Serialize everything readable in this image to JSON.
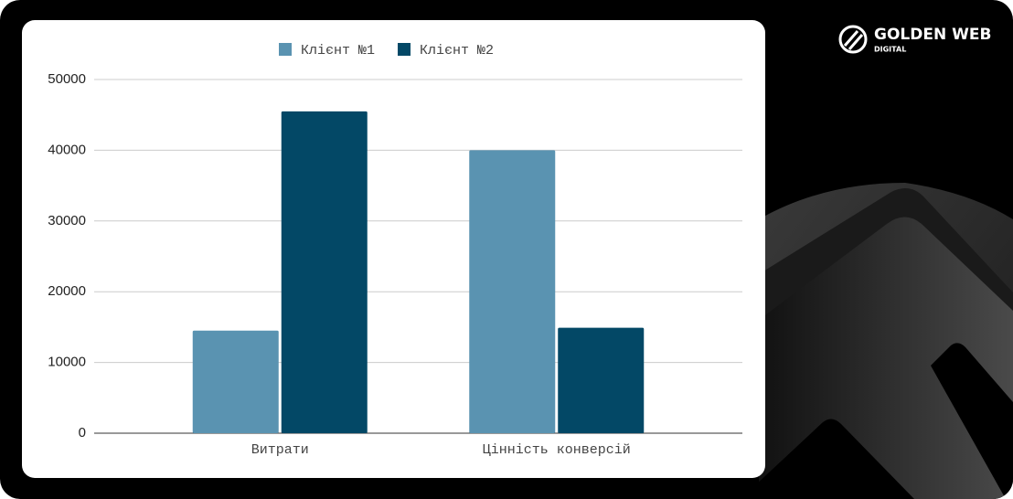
{
  "brand": {
    "name": "GOLDEN WEB",
    "tagline": "DIGITAL"
  },
  "chart_data": {
    "type": "bar",
    "categories": [
      "Витрати",
      "Цінність конверсій"
    ],
    "series": [
      {
        "name": "Клієнт №1",
        "color": "#5a93b1",
        "values": [
          14500,
          40000
        ]
      },
      {
        "name": "Клієнт №2",
        "color": "#034866",
        "values": [
          45500,
          14900
        ]
      }
    ],
    "ylim": [
      0,
      50000
    ],
    "yticks": [
      0,
      10000,
      20000,
      30000,
      40000,
      50000
    ],
    "grid": true,
    "legend": "top"
  }
}
